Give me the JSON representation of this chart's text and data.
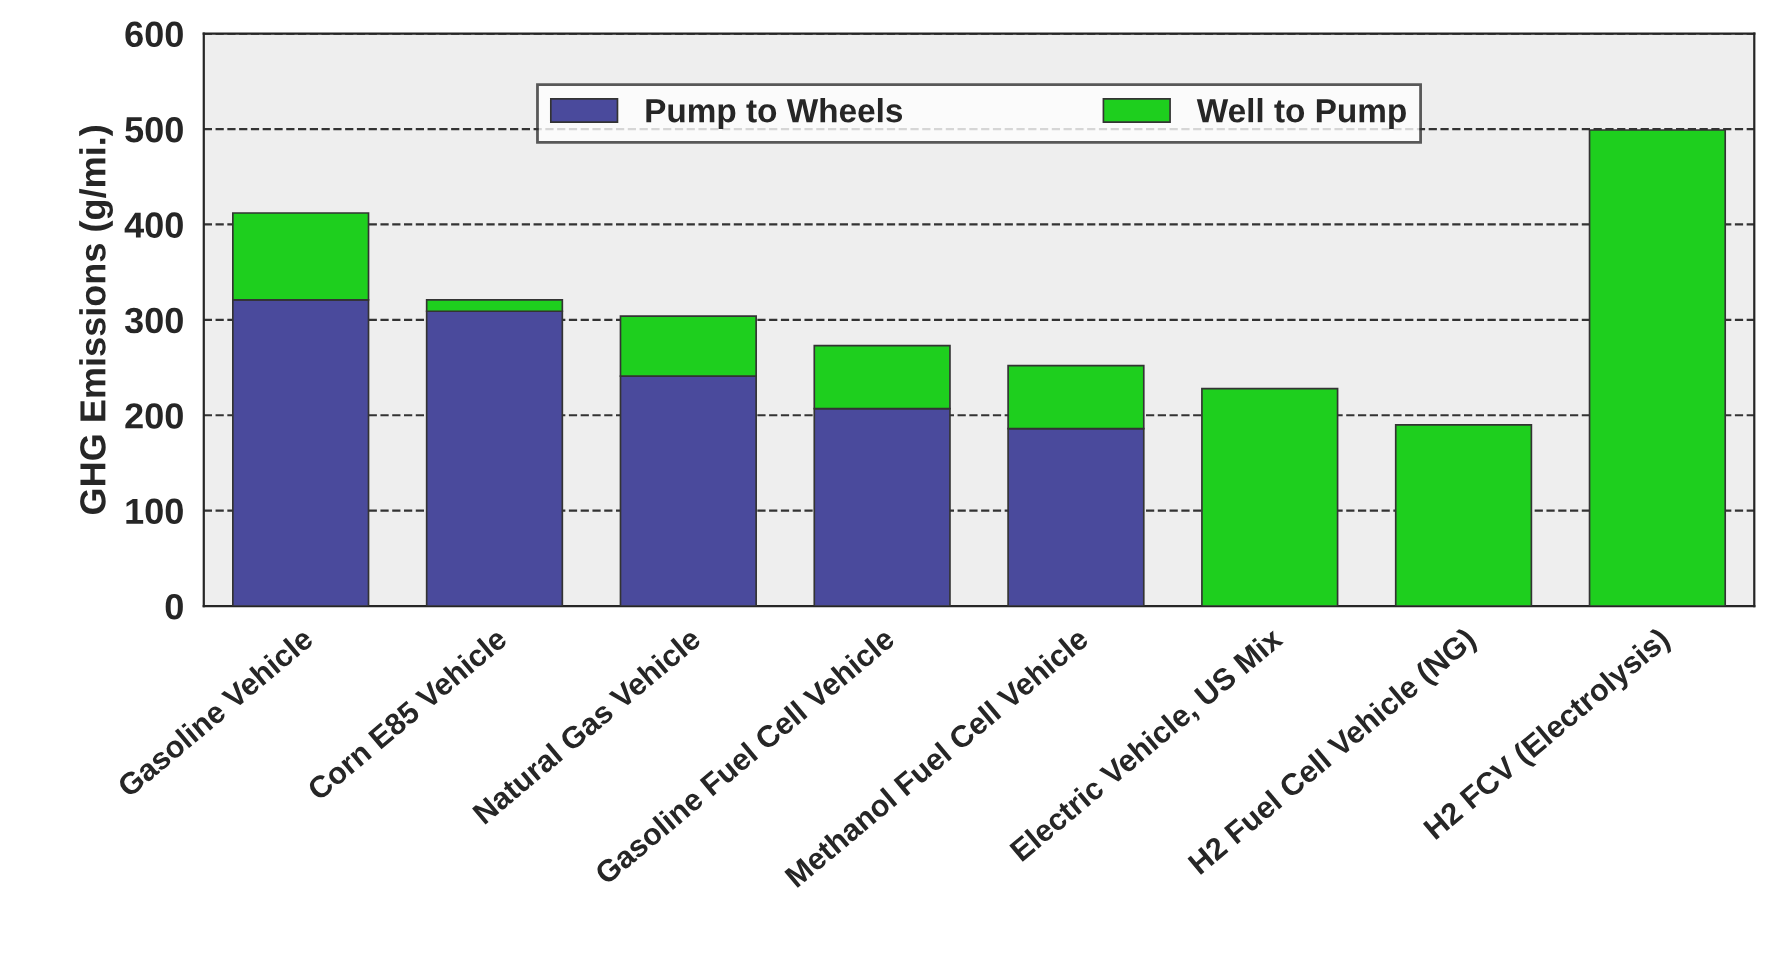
{
  "chart_data": {
    "type": "bar",
    "stacked": true,
    "ylabel": "GHG Emissions (g/mi.)",
    "categories": [
      "Gasoline Vehicle",
      "Corn E85 Vehicle",
      "Natural Gas Vehicle",
      "Gasoline Fuel Cell Vehicle",
      "Methanol Fuel Cell Vehicle",
      "Electric Vehicle, US Mix",
      "H2 Fuel Cell Vehicle (NG)",
      "H2 FCV (Electrolysis)"
    ],
    "series": [
      {
        "name": "Pump to Wheels",
        "color": "#4a4a9c",
        "values": [
          321,
          309,
          241,
          207,
          186,
          null,
          null,
          null
        ]
      },
      {
        "name": "Well to Pump",
        "color": "#1ecf1e",
        "values": [
          91,
          12,
          63,
          66,
          66,
          228,
          190,
          499
        ]
      }
    ],
    "ylim": [
      0,
      600
    ],
    "yticks": [
      0,
      100,
      200,
      300,
      400,
      500,
      600
    ],
    "grid": "y",
    "legend": "top"
  }
}
